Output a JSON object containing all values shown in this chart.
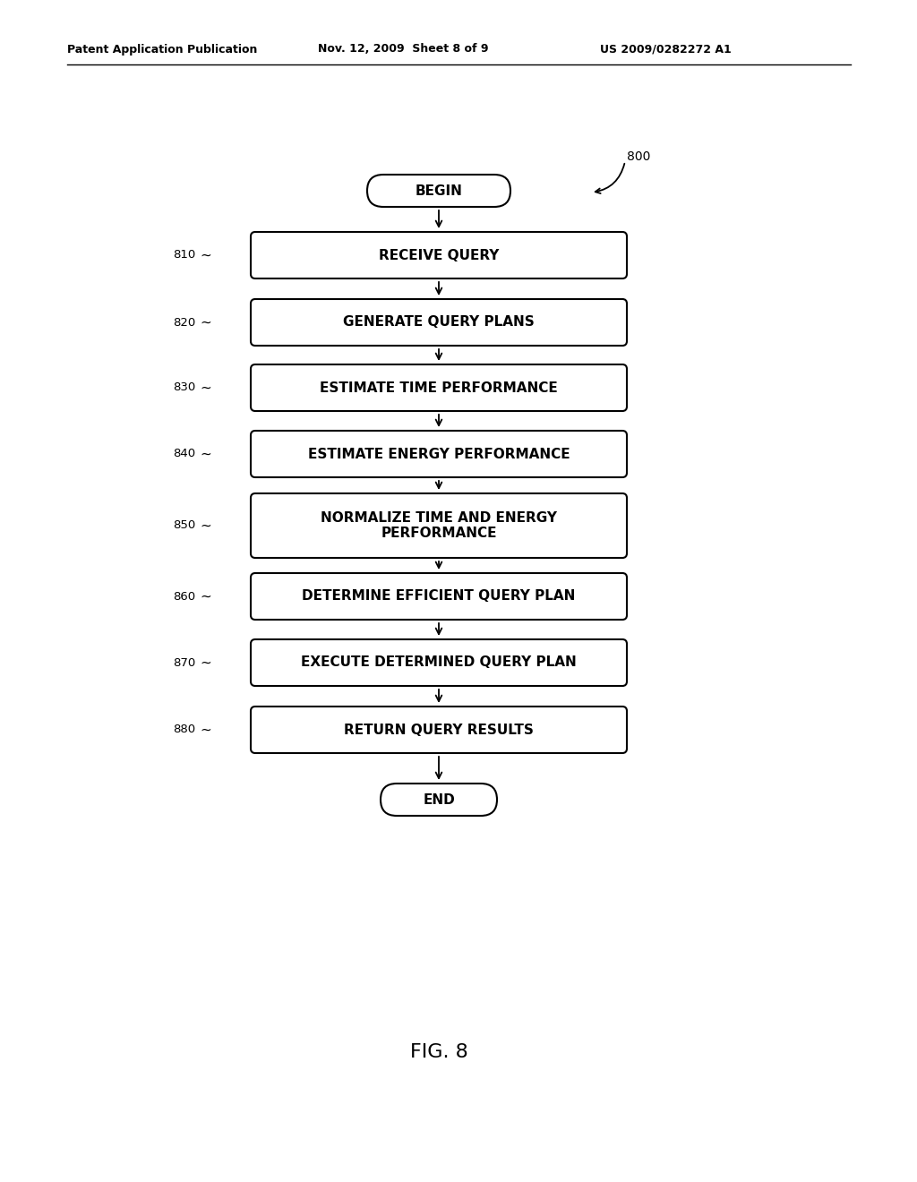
{
  "bg_color": "#ffffff",
  "header_left": "Patent Application Publication",
  "header_center": "Nov. 12, 2009  Sheet 8 of 9",
  "header_right": "US 2009/0282272 A1",
  "figure_label": "FIG. 8",
  "diagram_label": "800",
  "begin_label": "BEGIN",
  "end_label": "END",
  "steps": [
    {
      "label": "810",
      "text": "RECEIVE QUERY"
    },
    {
      "label": "820",
      "text": "GENERATE QUERY PLANS"
    },
    {
      "label": "830",
      "text": "ESTIMATE TIME PERFORMANCE"
    },
    {
      "label": "840",
      "text": "ESTIMATE ENERGY PERFORMANCE"
    },
    {
      "label": "850",
      "text": "NORMALIZE TIME AND ENERGY\nPERFORMANCE"
    },
    {
      "label": "860",
      "text": "DETERMINE EFFICIENT QUERY PLAN"
    },
    {
      "label": "870",
      "text": "EXECUTE DETERMINED QUERY PLAN"
    },
    {
      "label": "880",
      "text": "RETURN QUERY RESULTS"
    }
  ],
  "line_color": "#000000",
  "text_color": "#000000",
  "font_size_step": 11,
  "font_size_label": 9.5,
  "font_size_header": 9,
  "font_size_fig": 16,
  "font_size_diagram_num": 10
}
